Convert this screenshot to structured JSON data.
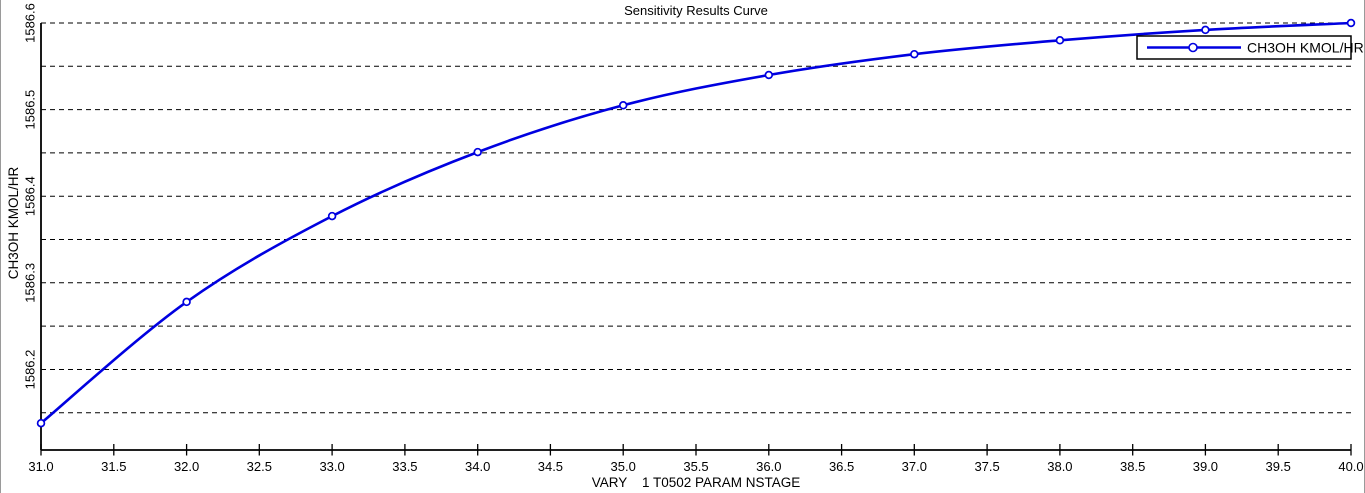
{
  "window": {
    "background": "#ffffff",
    "frame_color": "#9a9a9a"
  },
  "chart_data": {
    "type": "line",
    "title": "Sensitivity Results Curve",
    "xlabel": "VARY    1 T0502 PARAM NSTAGE",
    "ylabel": "CH3OH KMOL/HR",
    "grid": {
      "horizontal": "dashed",
      "vertical": "none",
      "grid_color": "#000000"
    },
    "xlim": [
      31.0,
      40.0
    ],
    "ylim": [
      1586.107,
      1586.6
    ],
    "x_ticks": {
      "values": [
        31.0,
        31.5,
        32.0,
        32.5,
        33.0,
        33.5,
        34.0,
        34.5,
        35.0,
        35.5,
        36.0,
        36.5,
        37.0,
        37.5,
        38.0,
        38.5,
        39.0,
        39.5,
        40.0
      ],
      "labels": [
        "31.0",
        "31.5",
        "32.0",
        "32.5",
        "33.0",
        "33.5",
        "34.0",
        "34.5",
        "35.0",
        "35.5",
        "36.0",
        "36.5",
        "37.0",
        "37.5",
        "38.0",
        "38.5",
        "39.0",
        "39.5",
        "40.0"
      ]
    },
    "y_ticks": {
      "values": [
        1586.2,
        1586.3,
        1586.4,
        1586.5,
        1586.6
      ],
      "labels": [
        "1586.2",
        "1586.3",
        "1586.4",
        "1586.5",
        "1586.6"
      ]
    },
    "y_gridlines": [
      1586.15,
      1586.2,
      1586.25,
      1586.3,
      1586.35,
      1586.4,
      1586.45,
      1586.5,
      1586.55,
      1586.6
    ],
    "series": [
      {
        "name": "CH3OH KMOL/HR",
        "x": [
          31,
          32,
          33,
          34,
          35,
          36,
          37,
          38,
          39,
          40
        ],
        "values": [
          1586.138,
          1586.278,
          1586.377,
          1586.451,
          1586.505,
          1586.54,
          1586.564,
          1586.58,
          1586.592,
          1586.6
        ],
        "color": "#0000E0",
        "marker": "open-circle",
        "marker_fill": "#ffffff",
        "line_style": "smooth"
      }
    ],
    "legend": {
      "position": "top-right",
      "border_color": "#000000",
      "background": "#ffffff",
      "entries": [
        {
          "label": "CH3OH KMOL/HR",
          "color": "#0000E0",
          "marker": "open-circle"
        }
      ]
    }
  }
}
